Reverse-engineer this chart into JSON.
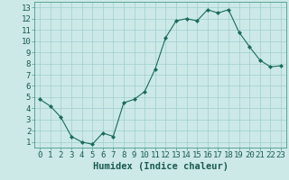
{
  "x": [
    0,
    1,
    2,
    3,
    4,
    5,
    6,
    7,
    8,
    9,
    10,
    11,
    12,
    13,
    14,
    15,
    16,
    17,
    18,
    19,
    20,
    21,
    22,
    23
  ],
  "y": [
    4.8,
    4.2,
    3.2,
    1.5,
    1.0,
    0.8,
    1.8,
    1.5,
    4.5,
    4.8,
    5.5,
    7.5,
    10.3,
    11.8,
    12.0,
    11.8,
    12.8,
    12.5,
    12.8,
    10.8,
    9.5,
    8.3,
    7.7,
    7.8
  ],
  "xlabel": "Humidex (Indice chaleur)",
  "xlim": [
    -0.5,
    23.5
  ],
  "ylim": [
    0.5,
    13.5
  ],
  "yticks": [
    1,
    2,
    3,
    4,
    5,
    6,
    7,
    8,
    9,
    10,
    11,
    12,
    13
  ],
  "xticks": [
    0,
    1,
    2,
    3,
    4,
    5,
    6,
    7,
    8,
    9,
    10,
    11,
    12,
    13,
    14,
    15,
    16,
    17,
    18,
    19,
    20,
    21,
    22,
    23
  ],
  "line_color": "#1a6b5a",
  "marker_color": "#1a6b5a",
  "bg_color": "#cce9e7",
  "grid_color": "#9ecece",
  "tick_label_fontsize": 6.5,
  "xlabel_fontsize": 7.5
}
